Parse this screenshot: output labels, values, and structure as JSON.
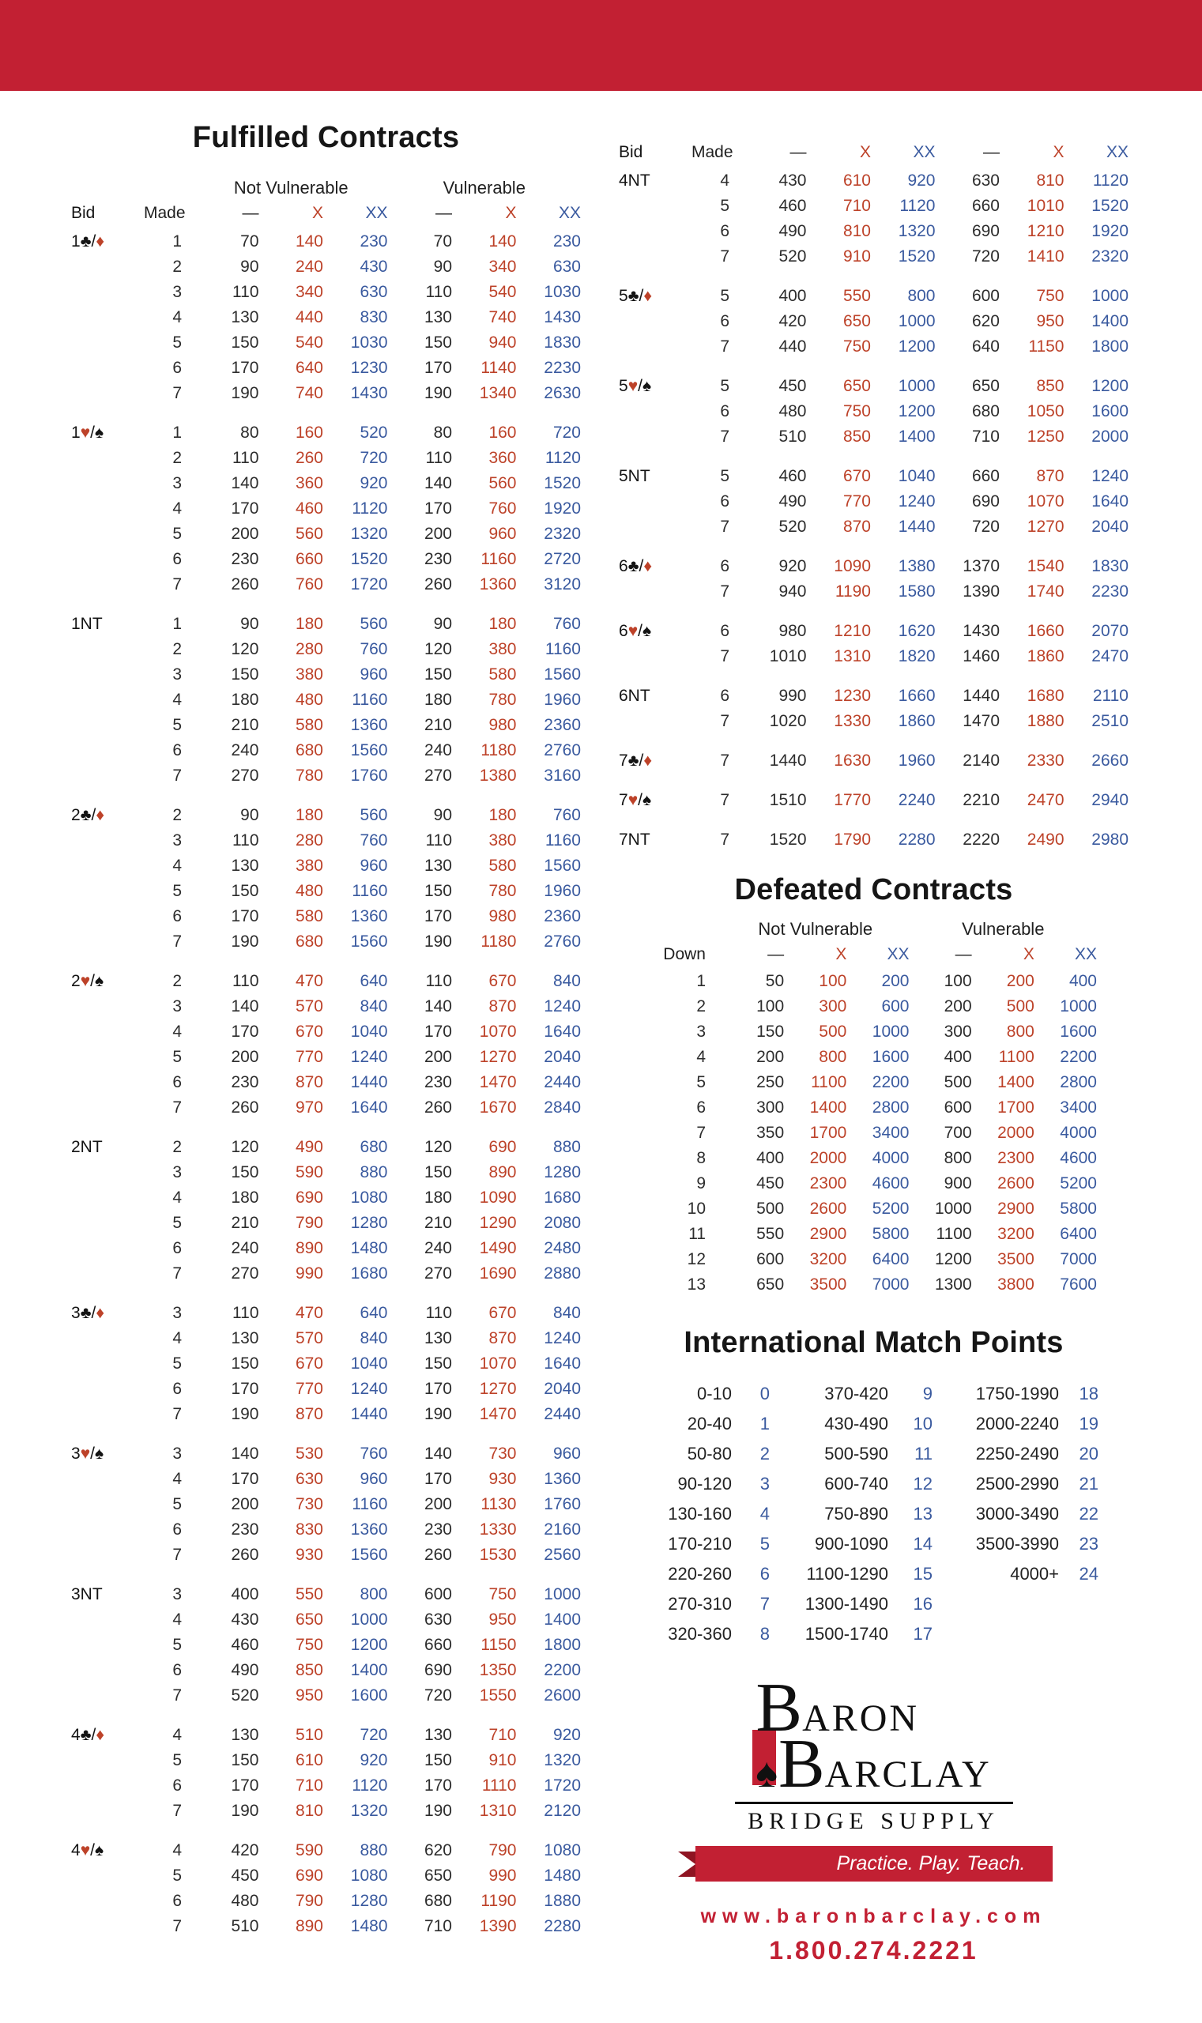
{
  "colors": {
    "banner_red": "#c22033",
    "doubled_red": "#bd4229",
    "redoubled_blue": "#3a5a9f",
    "text_dark": "#2d2d2d"
  },
  "headers": {
    "bid": "Bid",
    "made": "Made",
    "down": "Down",
    "undoubled": "—",
    "doubled": "X",
    "redoubled": "XX"
  },
  "fulfilled": {
    "title": "Fulfilled Contracts",
    "not_vulnerable": "Not Vulnerable",
    "vulnerable": "Vulnerable",
    "left_groups": [
      {
        "bid": "1♣/♦",
        "rows": [
          [
            1,
            70,
            140,
            230,
            70,
            140,
            230
          ],
          [
            2,
            90,
            240,
            430,
            90,
            340,
            630
          ],
          [
            3,
            110,
            340,
            630,
            110,
            540,
            1030
          ],
          [
            4,
            130,
            440,
            830,
            130,
            740,
            1430
          ],
          [
            5,
            150,
            540,
            1030,
            150,
            940,
            1830
          ],
          [
            6,
            170,
            640,
            1230,
            170,
            1140,
            2230
          ],
          [
            7,
            190,
            740,
            1430,
            190,
            1340,
            2630
          ]
        ]
      },
      {
        "bid": "1♥/♠",
        "rows": [
          [
            1,
            80,
            160,
            520,
            80,
            160,
            720
          ],
          [
            2,
            110,
            260,
            720,
            110,
            360,
            1120
          ],
          [
            3,
            140,
            360,
            920,
            140,
            560,
            1520
          ],
          [
            4,
            170,
            460,
            1120,
            170,
            760,
            1920
          ],
          [
            5,
            200,
            560,
            1320,
            200,
            960,
            2320
          ],
          [
            6,
            230,
            660,
            1520,
            230,
            1160,
            2720
          ],
          [
            7,
            260,
            760,
            1720,
            260,
            1360,
            3120
          ]
        ]
      },
      {
        "bid": "1NT",
        "rows": [
          [
            1,
            90,
            180,
            560,
            90,
            180,
            760
          ],
          [
            2,
            120,
            280,
            760,
            120,
            380,
            1160
          ],
          [
            3,
            150,
            380,
            960,
            150,
            580,
            1560
          ],
          [
            4,
            180,
            480,
            1160,
            180,
            780,
            1960
          ],
          [
            5,
            210,
            580,
            1360,
            210,
            980,
            2360
          ],
          [
            6,
            240,
            680,
            1560,
            240,
            1180,
            2760
          ],
          [
            7,
            270,
            780,
            1760,
            270,
            1380,
            3160
          ]
        ]
      },
      {
        "bid": "2♣/♦",
        "rows": [
          [
            2,
            90,
            180,
            560,
            90,
            180,
            760
          ],
          [
            3,
            110,
            280,
            760,
            110,
            380,
            1160
          ],
          [
            4,
            130,
            380,
            960,
            130,
            580,
            1560
          ],
          [
            5,
            150,
            480,
            1160,
            150,
            780,
            1960
          ],
          [
            6,
            170,
            580,
            1360,
            170,
            980,
            2360
          ],
          [
            7,
            190,
            680,
            1560,
            190,
            1180,
            2760
          ]
        ]
      },
      {
        "bid": "2♥/♠",
        "rows": [
          [
            2,
            110,
            470,
            640,
            110,
            670,
            840
          ],
          [
            3,
            140,
            570,
            840,
            140,
            870,
            1240
          ],
          [
            4,
            170,
            670,
            1040,
            170,
            1070,
            1640
          ],
          [
            5,
            200,
            770,
            1240,
            200,
            1270,
            2040
          ],
          [
            6,
            230,
            870,
            1440,
            230,
            1470,
            2440
          ],
          [
            7,
            260,
            970,
            1640,
            260,
            1670,
            2840
          ]
        ]
      },
      {
        "bid": "2NT",
        "rows": [
          [
            2,
            120,
            490,
            680,
            120,
            690,
            880
          ],
          [
            3,
            150,
            590,
            880,
            150,
            890,
            1280
          ],
          [
            4,
            180,
            690,
            1080,
            180,
            1090,
            1680
          ],
          [
            5,
            210,
            790,
            1280,
            210,
            1290,
            2080
          ],
          [
            6,
            240,
            890,
            1480,
            240,
            1490,
            2480
          ],
          [
            7,
            270,
            990,
            1680,
            270,
            1690,
            2880
          ]
        ]
      },
      {
        "bid": "3♣/♦",
        "rows": [
          [
            3,
            110,
            470,
            640,
            110,
            670,
            840
          ],
          [
            4,
            130,
            570,
            840,
            130,
            870,
            1240
          ],
          [
            5,
            150,
            670,
            1040,
            150,
            1070,
            1640
          ],
          [
            6,
            170,
            770,
            1240,
            170,
            1270,
            2040
          ],
          [
            7,
            190,
            870,
            1440,
            190,
            1470,
            2440
          ]
        ]
      },
      {
        "bid": "3♥/♠",
        "rows": [
          [
            3,
            140,
            530,
            760,
            140,
            730,
            960
          ],
          [
            4,
            170,
            630,
            960,
            170,
            930,
            1360
          ],
          [
            5,
            200,
            730,
            1160,
            200,
            1130,
            1760
          ],
          [
            6,
            230,
            830,
            1360,
            230,
            1330,
            2160
          ],
          [
            7,
            260,
            930,
            1560,
            260,
            1530,
            2560
          ]
        ]
      },
      {
        "bid": "3NT",
        "rows": [
          [
            3,
            400,
            550,
            800,
            600,
            750,
            1000
          ],
          [
            4,
            430,
            650,
            1000,
            630,
            950,
            1400
          ],
          [
            5,
            460,
            750,
            1200,
            660,
            1150,
            1800
          ],
          [
            6,
            490,
            850,
            1400,
            690,
            1350,
            2200
          ],
          [
            7,
            520,
            950,
            1600,
            720,
            1550,
            2600
          ]
        ]
      },
      {
        "bid": "4♣/♦",
        "rows": [
          [
            4,
            130,
            510,
            720,
            130,
            710,
            920
          ],
          [
            5,
            150,
            610,
            920,
            150,
            910,
            1320
          ],
          [
            6,
            170,
            710,
            1120,
            170,
            1110,
            1720
          ],
          [
            7,
            190,
            810,
            1320,
            190,
            1310,
            2120
          ]
        ]
      },
      {
        "bid": "4♥/♠",
        "rows": [
          [
            4,
            420,
            590,
            880,
            620,
            790,
            1080
          ],
          [
            5,
            450,
            690,
            1080,
            650,
            990,
            1480
          ],
          [
            6,
            480,
            790,
            1280,
            680,
            1190,
            1880
          ],
          [
            7,
            510,
            890,
            1480,
            710,
            1390,
            2280
          ]
        ]
      }
    ],
    "right_groups": [
      {
        "bid": "4NT",
        "rows": [
          [
            4,
            430,
            610,
            920,
            630,
            810,
            1120
          ],
          [
            5,
            460,
            710,
            1120,
            660,
            1010,
            1520
          ],
          [
            6,
            490,
            810,
            1320,
            690,
            1210,
            1920
          ],
          [
            7,
            520,
            910,
            1520,
            720,
            1410,
            2320
          ]
        ]
      },
      {
        "bid": "5♣/♦",
        "rows": [
          [
            5,
            400,
            550,
            800,
            600,
            750,
            1000
          ],
          [
            6,
            420,
            650,
            1000,
            620,
            950,
            1400
          ],
          [
            7,
            440,
            750,
            1200,
            640,
            1150,
            1800
          ]
        ]
      },
      {
        "bid": "5♥/♠",
        "rows": [
          [
            5,
            450,
            650,
            1000,
            650,
            850,
            1200
          ],
          [
            6,
            480,
            750,
            1200,
            680,
            1050,
            1600
          ],
          [
            7,
            510,
            850,
            1400,
            710,
            1250,
            2000
          ]
        ]
      },
      {
        "bid": "5NT",
        "rows": [
          [
            5,
            460,
            670,
            1040,
            660,
            870,
            1240
          ],
          [
            6,
            490,
            770,
            1240,
            690,
            1070,
            1640
          ],
          [
            7,
            520,
            870,
            1440,
            720,
            1270,
            2040
          ]
        ]
      },
      {
        "bid": "6♣/♦",
        "rows": [
          [
            6,
            920,
            1090,
            1380,
            1370,
            1540,
            1830
          ],
          [
            7,
            940,
            1190,
            1580,
            1390,
            1740,
            2230
          ]
        ]
      },
      {
        "bid": "6♥/♠",
        "rows": [
          [
            6,
            980,
            1210,
            1620,
            1430,
            1660,
            2070
          ],
          [
            7,
            1010,
            1310,
            1820,
            1460,
            1860,
            2470
          ]
        ]
      },
      {
        "bid": "6NT",
        "rows": [
          [
            6,
            990,
            1230,
            1660,
            1440,
            1680,
            2110
          ],
          [
            7,
            1020,
            1330,
            1860,
            1470,
            1880,
            2510
          ]
        ]
      },
      {
        "bid": "7♣/♦",
        "rows": [
          [
            7,
            1440,
            1630,
            1960,
            2140,
            2330,
            2660
          ]
        ]
      },
      {
        "bid": "7♥/♠",
        "rows": [
          [
            7,
            1510,
            1770,
            2240,
            2210,
            2470,
            2940
          ]
        ]
      },
      {
        "bid": "7NT",
        "rows": [
          [
            7,
            1520,
            1790,
            2280,
            2220,
            2490,
            2980
          ]
        ]
      }
    ]
  },
  "defeated": {
    "title": "Defeated Contracts",
    "not_vulnerable": "Not Vulnerable",
    "vulnerable": "Vulnerable",
    "rows": [
      [
        1,
        50,
        100,
        200,
        100,
        200,
        400
      ],
      [
        2,
        100,
        300,
        600,
        200,
        500,
        1000
      ],
      [
        3,
        150,
        500,
        1000,
        300,
        800,
        1600
      ],
      [
        4,
        200,
        800,
        1600,
        400,
        1100,
        2200
      ],
      [
        5,
        250,
        1100,
        2200,
        500,
        1400,
        2800
      ],
      [
        6,
        300,
        1400,
        2800,
        600,
        1700,
        3400
      ],
      [
        7,
        350,
        1700,
        3400,
        700,
        2000,
        4000
      ],
      [
        8,
        400,
        2000,
        4000,
        800,
        2300,
        4600
      ],
      [
        9,
        450,
        2300,
        4600,
        900,
        2600,
        5200
      ],
      [
        10,
        500,
        2600,
        5200,
        1000,
        2900,
        5800
      ],
      [
        11,
        550,
        2900,
        5800,
        1100,
        3200,
        6400
      ],
      [
        12,
        600,
        3200,
        6400,
        1200,
        3500,
        7000
      ],
      [
        13,
        650,
        3500,
        7000,
        1300,
        3800,
        7600
      ]
    ]
  },
  "imp": {
    "title": "International Match Points",
    "columns": [
      [
        [
          "0-10",
          0
        ],
        [
          "20-40",
          1
        ],
        [
          "50-80",
          2
        ],
        [
          "90-120",
          3
        ],
        [
          "130-160",
          4
        ],
        [
          "170-210",
          5
        ],
        [
          "220-260",
          6
        ],
        [
          "270-310",
          7
        ],
        [
          "320-360",
          8
        ]
      ],
      [
        [
          "370-420",
          9
        ],
        [
          "430-490",
          10
        ],
        [
          "500-590",
          11
        ],
        [
          "600-740",
          12
        ],
        [
          "750-890",
          13
        ],
        [
          "900-1090",
          14
        ],
        [
          "1100-1290",
          15
        ],
        [
          "1300-1490",
          16
        ],
        [
          "1500-1740",
          17
        ]
      ],
      [
        [
          "1750-1990",
          18
        ],
        [
          "2000-2240",
          19
        ],
        [
          "2250-2490",
          20
        ],
        [
          "2500-2990",
          21
        ],
        [
          "3000-3490",
          22
        ],
        [
          "3500-3990",
          23
        ],
        [
          "4000+",
          24
        ]
      ]
    ]
  },
  "logo": {
    "baron_initial": "B",
    "baron_rest": "ARON",
    "barclay_initial": "B",
    "barclay_rest": "ARCLAY",
    "spade": "♠",
    "subtitle": "BRIDGE SUPPLY",
    "tagline": "Practice. Play. Teach.",
    "website": "www.baronbarclay.com",
    "phone": "1.800.274.2221"
  }
}
